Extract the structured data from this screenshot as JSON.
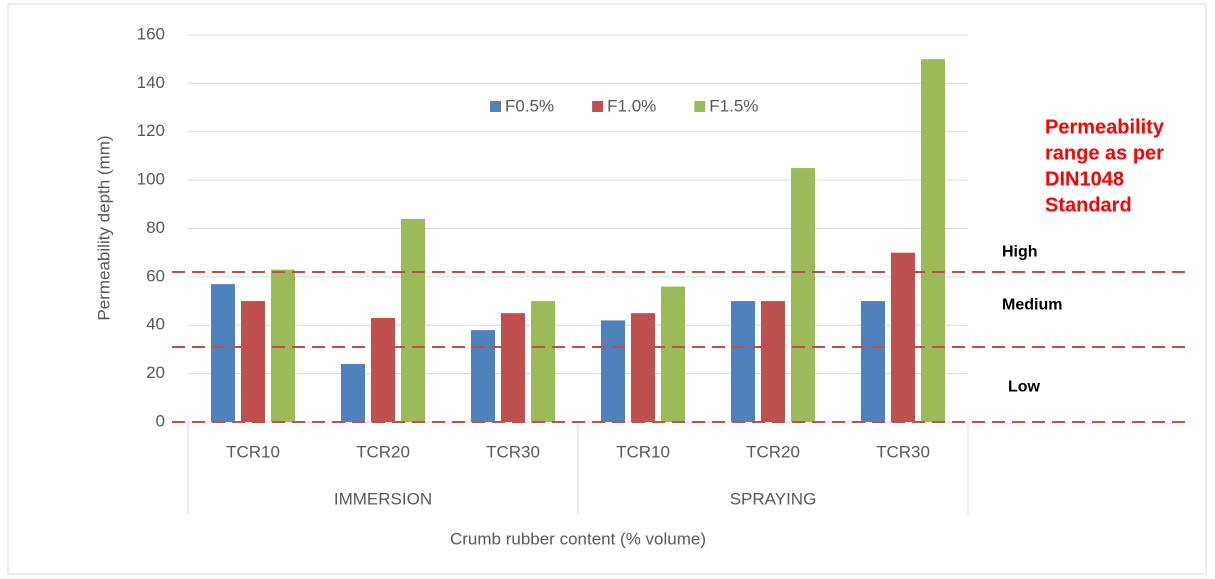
{
  "chart_data": {
    "type": "bar",
    "y_label": "Permeability depth (mm)",
    "x_label": "Crumb rubber content (% volume)",
    "categories": [
      "TCR10",
      "TCR20",
      "TCR30",
      "TCR10",
      "TCR20",
      "TCR30"
    ],
    "groups": [
      "IMMERSION",
      "SPRAYING"
    ],
    "series": [
      {
        "name": "F0.5%",
        "color": "#4f81bd",
        "values": [
          57,
          24,
          38,
          42,
          50,
          50
        ]
      },
      {
        "name": "F1.0%",
        "color": "#c0504d",
        "values": [
          50,
          43,
          45,
          45,
          50,
          70
        ]
      },
      {
        "name": "F1.5%",
        "color": "#9bbb59",
        "values": [
          63,
          84,
          50,
          56,
          105,
          150
        ]
      }
    ],
    "ylim": [
      0,
      160
    ],
    "yticks": [
      0,
      20,
      40,
      60,
      80,
      100,
      120,
      140,
      160
    ],
    "grid": true,
    "legend": "top",
    "reference_lines": [
      62,
      31,
      0
    ],
    "zone_labels": [
      "High",
      "Medium",
      "Low"
    ],
    "annotation": [
      "Permeability",
      "range as per",
      "DIN1048",
      "Standard"
    ]
  }
}
